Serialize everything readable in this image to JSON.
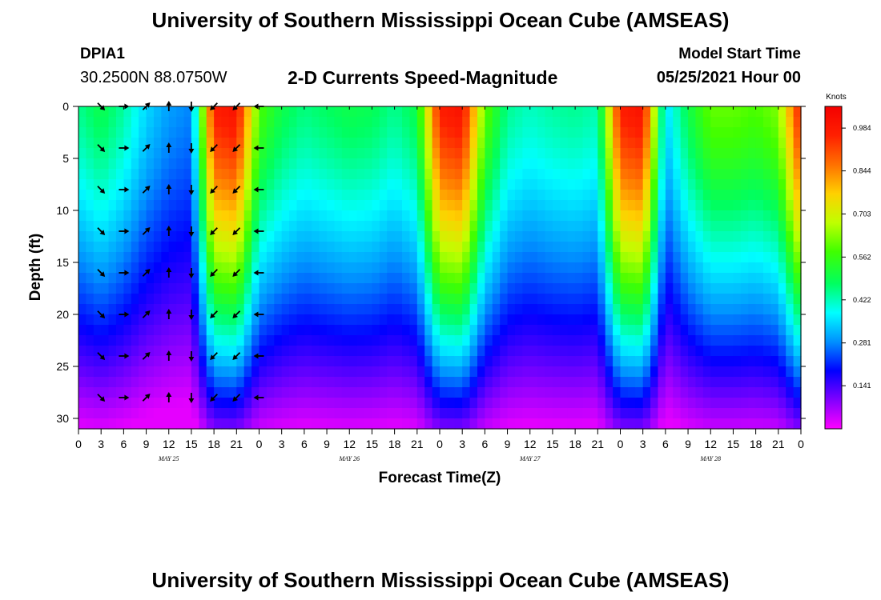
{
  "header": {
    "title": "University of Southern Mississippi Ocean Cube (AMSEAS)",
    "station_id": "DPIA1",
    "station_coords": "30.2500N  88.0750W",
    "plot_title": "2-D Currents Speed-Magnitude",
    "model_start_label": "Model Start Time",
    "model_start_value": "05/25/2021 Hour 00"
  },
  "footer": {
    "title": "University of Southern Mississippi Ocean Cube (AMSEAS)"
  },
  "chart_data": {
    "type": "heatmap",
    "title": "2-D Currents Speed-Magnitude",
    "xlabel": "Forecast Time(Z)",
    "ylabel": "Depth (ft)",
    "xlim": [
      0,
      96
    ],
    "ylim": [
      31,
      0
    ],
    "x_ticks": [
      0,
      3,
      6,
      9,
      12,
      15,
      18,
      21,
      24,
      27,
      30,
      33,
      36,
      39,
      42,
      45,
      48,
      51,
      54,
      57,
      60,
      63,
      66,
      69,
      72,
      75,
      78,
      81,
      84,
      87,
      90,
      93,
      96
    ],
    "x_tick_labels": [
      "0",
      "3",
      "6",
      "9",
      "12",
      "15",
      "18",
      "21",
      "0",
      "3",
      "6",
      "9",
      "12",
      "15",
      "18",
      "21",
      "0",
      "3",
      "6",
      "9",
      "12",
      "15",
      "18",
      "21",
      "0",
      "3",
      "6",
      "9",
      "12",
      "15",
      "18",
      "21",
      "0"
    ],
    "date_labels": [
      {
        "x": 12,
        "label": "MAY 25"
      },
      {
        "x": 36,
        "label": "MAY 26"
      },
      {
        "x": 60,
        "label": "MAY 27"
      },
      {
        "x": 84,
        "label": "MAY 28"
      }
    ],
    "y_ticks": [
      0,
      5,
      10,
      15,
      20,
      25,
      30
    ],
    "y_tick_labels": [
      "0",
      "5",
      "10",
      "15",
      "20",
      "25",
      "30"
    ],
    "colorbar": {
      "label": "Knots",
      "range": [
        0,
        1.055
      ],
      "tick_values": [
        0.984,
        0.844,
        0.703,
        0.562,
        0.422,
        0.281,
        0.141
      ],
      "tick_labels": [
        "0.984",
        "0.844",
        "0.703",
        "0.562",
        "0.422",
        "0.281",
        "0.141"
      ]
    },
    "color_scale": [
      "#ff00ff",
      "#8000ff",
      "#0000ff",
      "#0090ff",
      "#00ffff",
      "#00ff60",
      "#40ff00",
      "#c0ff00",
      "#ffd000",
      "#ff7000",
      "#ff2000",
      "#f40000"
    ],
    "time_hours": [
      0,
      3,
      6,
      9,
      12,
      15,
      18,
      21,
      24,
      27,
      30,
      33,
      36,
      39,
      42,
      45,
      48,
      51,
      54,
      57,
      60,
      63,
      66,
      69,
      72,
      75,
      78,
      81,
      84,
      87,
      90,
      93,
      96
    ],
    "depths_ft": [
      0,
      4,
      8,
      12,
      16,
      20,
      24,
      28
    ],
    "surface_speed_knots": [
      0.45,
      0.5,
      0.44,
      0.35,
      0.3,
      0.28,
      0.97,
      1.0,
      0.58,
      0.5,
      0.46,
      0.48,
      0.5,
      0.49,
      0.45,
      0.5,
      0.97,
      1.0,
      0.6,
      0.45,
      0.42,
      0.44,
      0.45,
      0.43,
      0.97,
      1.0,
      0.35,
      0.5,
      0.6,
      0.6,
      0.58,
      0.62,
      0.98
    ],
    "vectors": [
      {
        "t": 3,
        "depths": [
          0,
          4,
          8,
          12,
          16,
          20,
          24,
          28
        ],
        "dir": "SE"
      },
      {
        "t": 6,
        "depths": [
          0,
          4,
          8,
          12,
          16,
          20,
          24,
          28
        ],
        "dir": "E"
      },
      {
        "t": 9,
        "depths": [
          0,
          4,
          8,
          12,
          16,
          20,
          24,
          28
        ],
        "dir": "NE"
      },
      {
        "t": 12,
        "depths": [
          0,
          4,
          8,
          12,
          16,
          20,
          24,
          28
        ],
        "dir": "N"
      },
      {
        "t": 15,
        "depths": [
          0,
          4,
          8,
          12,
          16,
          20,
          24,
          28
        ],
        "dir": "S"
      },
      {
        "t": 18,
        "depths": [
          0,
          4,
          8,
          12,
          16,
          20,
          24,
          28
        ],
        "dir": "SW"
      },
      {
        "t": 21,
        "depths": [
          0,
          4,
          8,
          12,
          16,
          20,
          24,
          28
        ],
        "dir": "SW"
      },
      {
        "t": 24,
        "depths": [
          0,
          4,
          8,
          12,
          16,
          20,
          24,
          28
        ],
        "dir": "W"
      }
    ]
  }
}
